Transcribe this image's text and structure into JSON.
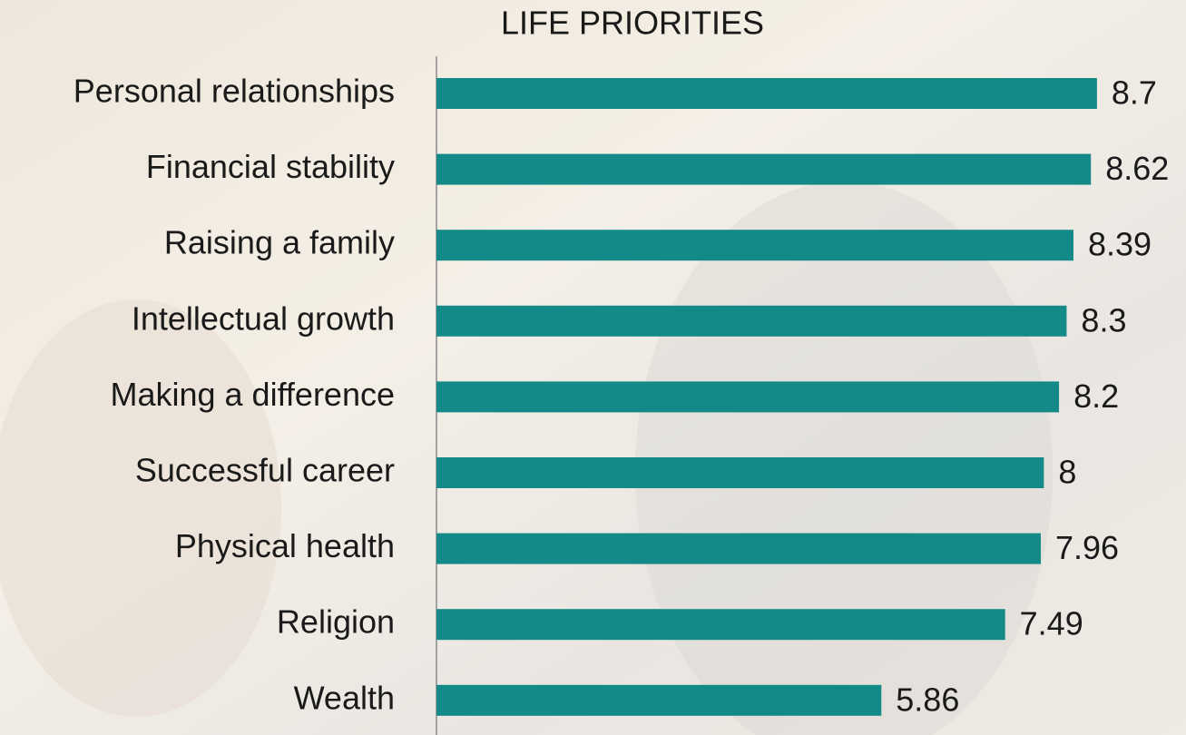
{
  "chart_data": {
    "type": "bar",
    "orientation": "horizontal",
    "title": "LIFE PRIORITIES",
    "categories": [
      "Personal relationships",
      "Financial stability",
      "Raising a family",
      "Intellectual growth",
      "Making a difference",
      "Successful career",
      "Physical health",
      "Religion",
      "Wealth"
    ],
    "values": [
      8.7,
      8.62,
      8.39,
      8.3,
      8.2,
      8,
      7.96,
      7.49,
      5.86
    ],
    "color": "#138a87",
    "xlim": [
      0,
      9
    ]
  }
}
